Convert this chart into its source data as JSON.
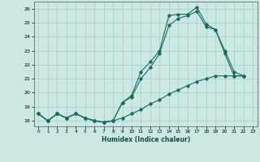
{
  "xlabel": "Humidex (Indice chaleur)",
  "bg_color": "#cce8e4",
  "grid_color": "#aad4ce",
  "line_color": "#1a6b5a",
  "xlim": [
    -0.5,
    23.5
  ],
  "ylim": [
    17.6,
    26.5
  ],
  "yticks": [
    18,
    19,
    20,
    21,
    22,
    23,
    24,
    25,
    26
  ],
  "xticks": [
    0,
    1,
    2,
    3,
    4,
    5,
    6,
    7,
    8,
    9,
    10,
    11,
    12,
    13,
    14,
    15,
    16,
    17,
    18,
    19,
    20,
    21,
    22,
    23
  ],
  "line1_x": [
    0,
    1,
    2,
    3,
    4,
    5,
    6,
    7,
    8,
    9,
    10,
    11,
    12,
    13,
    14,
    15,
    16,
    17,
    18,
    19,
    20,
    21,
    22
  ],
  "line1_y": [
    18.5,
    18.0,
    18.5,
    18.2,
    18.5,
    18.2,
    18.0,
    17.9,
    18.0,
    19.3,
    19.8,
    21.5,
    22.2,
    23.0,
    25.5,
    25.6,
    25.6,
    26.1,
    24.9,
    24.5,
    23.0,
    21.5,
    21.2
  ],
  "line2_x": [
    0,
    1,
    2,
    3,
    4,
    5,
    6,
    7,
    8,
    9,
    10,
    11,
    12,
    13,
    14,
    15,
    16,
    17,
    18,
    19,
    20,
    21,
    22
  ],
  "line2_y": [
    18.5,
    18.0,
    18.5,
    18.2,
    18.5,
    18.2,
    18.0,
    17.9,
    18.0,
    19.3,
    19.7,
    21.0,
    21.8,
    22.8,
    24.8,
    25.3,
    25.5,
    25.8,
    24.7,
    24.5,
    22.8,
    21.2,
    21.2
  ],
  "line3_x": [
    0,
    1,
    2,
    3,
    4,
    5,
    6,
    7,
    8,
    9,
    10,
    11,
    12,
    13,
    14,
    15,
    16,
    17,
    18,
    19,
    20,
    21,
    22
  ],
  "line3_y": [
    18.5,
    18.0,
    18.5,
    18.2,
    18.5,
    18.2,
    18.0,
    17.9,
    18.0,
    18.2,
    18.5,
    18.8,
    19.2,
    19.5,
    19.9,
    20.2,
    20.5,
    20.8,
    21.0,
    21.2,
    21.2,
    21.2,
    21.2
  ]
}
